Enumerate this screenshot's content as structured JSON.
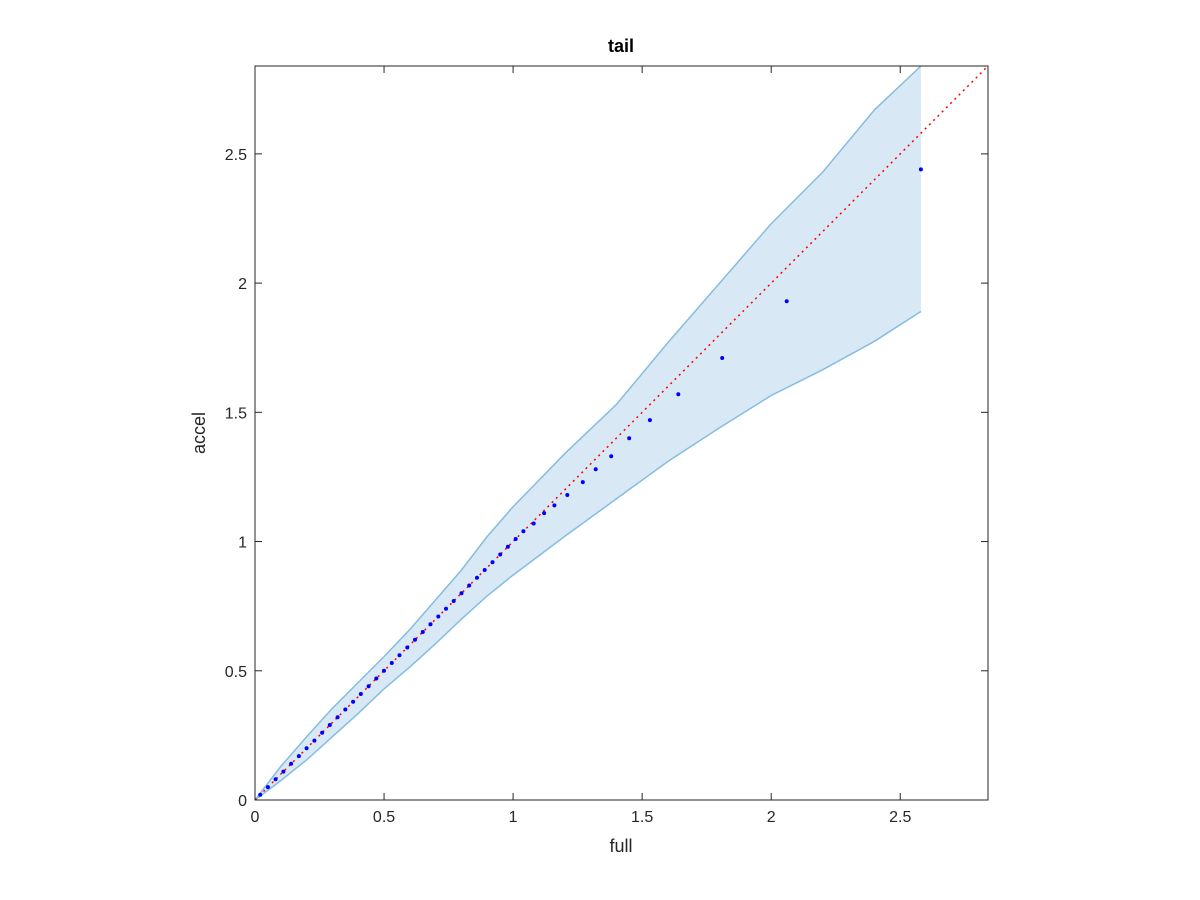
{
  "chart_data": {
    "type": "scatter",
    "title": "tail",
    "xlabel": "full",
    "ylabel": "accel",
    "xlim": [
      0,
      2.84
    ],
    "ylim": [
      0,
      2.84
    ],
    "grid": false,
    "box": true,
    "xticks": [
      0,
      0.5,
      1,
      1.5,
      2,
      2.5
    ],
    "yticks": [
      0,
      0.5,
      1,
      1.5,
      2,
      2.5
    ],
    "xtick_labels": [
      "0",
      "0.5",
      "1",
      "1.5",
      "2",
      "2.5"
    ],
    "ytick_labels": [
      "0",
      "0.5",
      "1",
      "1.5",
      "2",
      "2.5"
    ],
    "colors": {
      "points": "#0000ff",
      "reference_line": "#ff0000",
      "band_fill": "#d9e8f5",
      "band_edge": "#85bde0",
      "axes": "#262626"
    },
    "reference_line": {
      "x": [
        0,
        2.84
      ],
      "y": [
        0,
        2.84
      ],
      "style": "dotted"
    },
    "band": {
      "x": [
        0,
        0.1,
        0.2,
        0.3,
        0.4,
        0.5,
        0.6,
        0.7,
        0.8,
        0.9,
        1.0,
        1.2,
        1.4,
        1.6,
        1.8,
        2.0,
        2.2,
        2.4,
        2.58
      ],
      "upper": [
        0,
        0.13,
        0.245,
        0.355,
        0.455,
        0.555,
        0.66,
        0.775,
        0.89,
        1.02,
        1.135,
        1.34,
        1.53,
        1.77,
        2.0,
        2.23,
        2.43,
        2.67,
        2.84
      ],
      "lower": [
        0,
        0.075,
        0.155,
        0.245,
        0.335,
        0.43,
        0.515,
        0.605,
        0.7,
        0.79,
        0.87,
        1.02,
        1.165,
        1.31,
        1.44,
        1.565,
        1.665,
        1.775,
        1.89
      ]
    },
    "series": [
      {
        "x": [
          0.02,
          0.05,
          0.08,
          0.11,
          0.14,
          0.17,
          0.2,
          0.23,
          0.26,
          0.29,
          0.32,
          0.35,
          0.38,
          0.41,
          0.44,
          0.47,
          0.5,
          0.53,
          0.56,
          0.59,
          0.62,
          0.65,
          0.68,
          0.71,
          0.74,
          0.77,
          0.8,
          0.83,
          0.86,
          0.89,
          0.92,
          0.95,
          0.98,
          1.01,
          1.04,
          1.08,
          1.12,
          1.16,
          1.21,
          1.27,
          1.32,
          1.38,
          1.45,
          1.53,
          1.64,
          1.81,
          2.06,
          2.58
        ],
        "y": [
          0.02,
          0.05,
          0.08,
          0.11,
          0.14,
          0.17,
          0.2,
          0.23,
          0.26,
          0.29,
          0.32,
          0.35,
          0.38,
          0.41,
          0.44,
          0.47,
          0.5,
          0.53,
          0.56,
          0.59,
          0.62,
          0.65,
          0.68,
          0.71,
          0.74,
          0.77,
          0.8,
          0.83,
          0.86,
          0.89,
          0.92,
          0.95,
          0.98,
          1.01,
          1.04,
          1.07,
          1.11,
          1.14,
          1.18,
          1.23,
          1.28,
          1.33,
          1.4,
          1.47,
          1.57,
          1.71,
          1.93,
          2.44
        ]
      }
    ]
  }
}
